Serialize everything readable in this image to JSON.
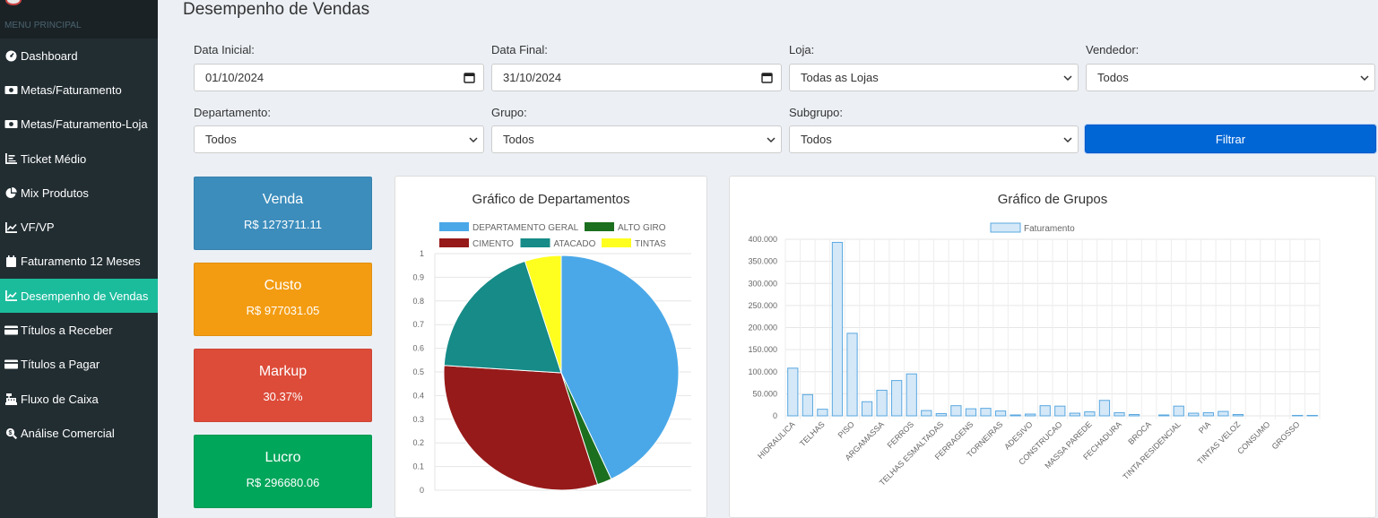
{
  "sidebar": {
    "header": "MENU PRINCIPAL",
    "items": [
      {
        "label": "Dashboard",
        "icon": "dashboard-gauge-icon",
        "active": false
      },
      {
        "label": "Metas/Faturamento",
        "icon": "money-bill-icon",
        "active": false
      },
      {
        "label": "Metas/Faturamento-Loja",
        "icon": "money-bill-icon",
        "active": false
      },
      {
        "label": "Ticket Médio",
        "icon": "list-ol-icon",
        "active": false
      },
      {
        "label": "Mix Produtos",
        "icon": "pie-chart-icon",
        "active": false
      },
      {
        "label": "VF/VP",
        "icon": "line-chart-icon",
        "active": false
      },
      {
        "label": "Faturamento 12 Meses",
        "icon": "calendar-icon",
        "active": false
      },
      {
        "label": "Desempenho de Vendas",
        "icon": "line-chart-icon",
        "active": true
      },
      {
        "label": "Títulos a Receber",
        "icon": "credit-card-icon",
        "active": false
      },
      {
        "label": "Títulos a Pagar",
        "icon": "credit-card-icon",
        "active": false
      },
      {
        "label": "Fluxo de Caixa",
        "icon": "cash-register-icon",
        "active": false
      },
      {
        "label": "Análise Comercial",
        "icon": "search-dollar-icon",
        "active": false
      }
    ]
  },
  "page": {
    "title": "Desempenho de Vendas"
  },
  "filters": {
    "data_inicial": {
      "label": "Data Inicial:",
      "value": "01/10/2024"
    },
    "data_final": {
      "label": "Data Final:",
      "value": "31/10/2024"
    },
    "loja": {
      "label": "Loja:",
      "value": "Todas as Lojas"
    },
    "vendedor": {
      "label": "Vendedor:",
      "value": "Todos"
    },
    "departamento": {
      "label": "Departamento:",
      "value": "Todos"
    },
    "grupo": {
      "label": "Grupo:",
      "value": "Todos"
    },
    "subgrupo": {
      "label": "Subgrupo:",
      "value": "Todos"
    },
    "button": "Filtrar"
  },
  "kpis": {
    "venda": {
      "title": "Venda",
      "value": "R$ 1273711.11",
      "color": "#3c8dbc"
    },
    "custo": {
      "title": "Custo",
      "value": "R$ 977031.05",
      "color": "#f39c12"
    },
    "markup": {
      "title": "Markup",
      "value": "30.37%",
      "color": "#dd4b39"
    },
    "lucro": {
      "title": "Lucro",
      "value": "R$ 296680.06",
      "color": "#00a65a"
    }
  },
  "chart_data": [
    {
      "type": "pie",
      "title": "Gráfico de Departamentos",
      "labels": [
        "DEPARTAMENTO GERAL",
        "ALTO GIRO",
        "CIMENTO",
        "ATACADO",
        "TINTAS"
      ],
      "values": [
        0.43,
        0.02,
        0.31,
        0.19,
        0.05
      ],
      "colors": [
        "#4aa8e8",
        "#1b6f1e",
        "#961a1a",
        "#168b87",
        "#ffff1f"
      ],
      "yticks": [
        "1",
        "0.9",
        "0.8",
        "0.7",
        "0.6",
        "0.5",
        "0.4",
        "0.3",
        "0.2",
        "0.1",
        "0"
      ],
      "legend_position": "top"
    },
    {
      "type": "bar",
      "title": "Gráfico de Grupos",
      "series": [
        {
          "name": "Faturamento"
        }
      ],
      "categories": [
        "HIDRAULICA",
        "",
        "TELHAS",
        "",
        "PISO",
        "",
        "ARGAMASSA",
        "",
        "FERROS",
        "",
        "TELHAS ESMALTADAS",
        "",
        "FERRAGENS",
        "",
        "TORNEIRAS",
        "",
        "ADESIVO",
        "",
        "CONSTRUCAO",
        "",
        "MASSA PAREDE",
        "",
        "FECHADURA",
        "",
        "BROCA",
        "",
        "TINTA RESIDENCIAL",
        "",
        "PIA",
        "",
        "TINTAS VELOZ",
        "",
        "CONSUMO",
        "",
        "GROSSO",
        ""
      ],
      "values": [
        108000,
        48000,
        15000,
        393000,
        187000,
        32000,
        58000,
        80000,
        95000,
        12000,
        5000,
        23000,
        16000,
        17000,
        11000,
        2000,
        4000,
        23000,
        22000,
        6000,
        9000,
        35000,
        7000,
        3000,
        0,
        2000,
        22000,
        6000,
        7000,
        10000,
        3000,
        0,
        0,
        0,
        1000,
        1000
      ],
      "yticks": [
        "0",
        "50.000",
        "100.000",
        "150.000",
        "200.000",
        "250.000",
        "300.000",
        "350.000",
        "400.000"
      ],
      "ylim": [
        0,
        400000
      ],
      "bar_color": "#d4e8f8",
      "bar_border": "#5aa8e0",
      "legend_position": "top"
    }
  ]
}
